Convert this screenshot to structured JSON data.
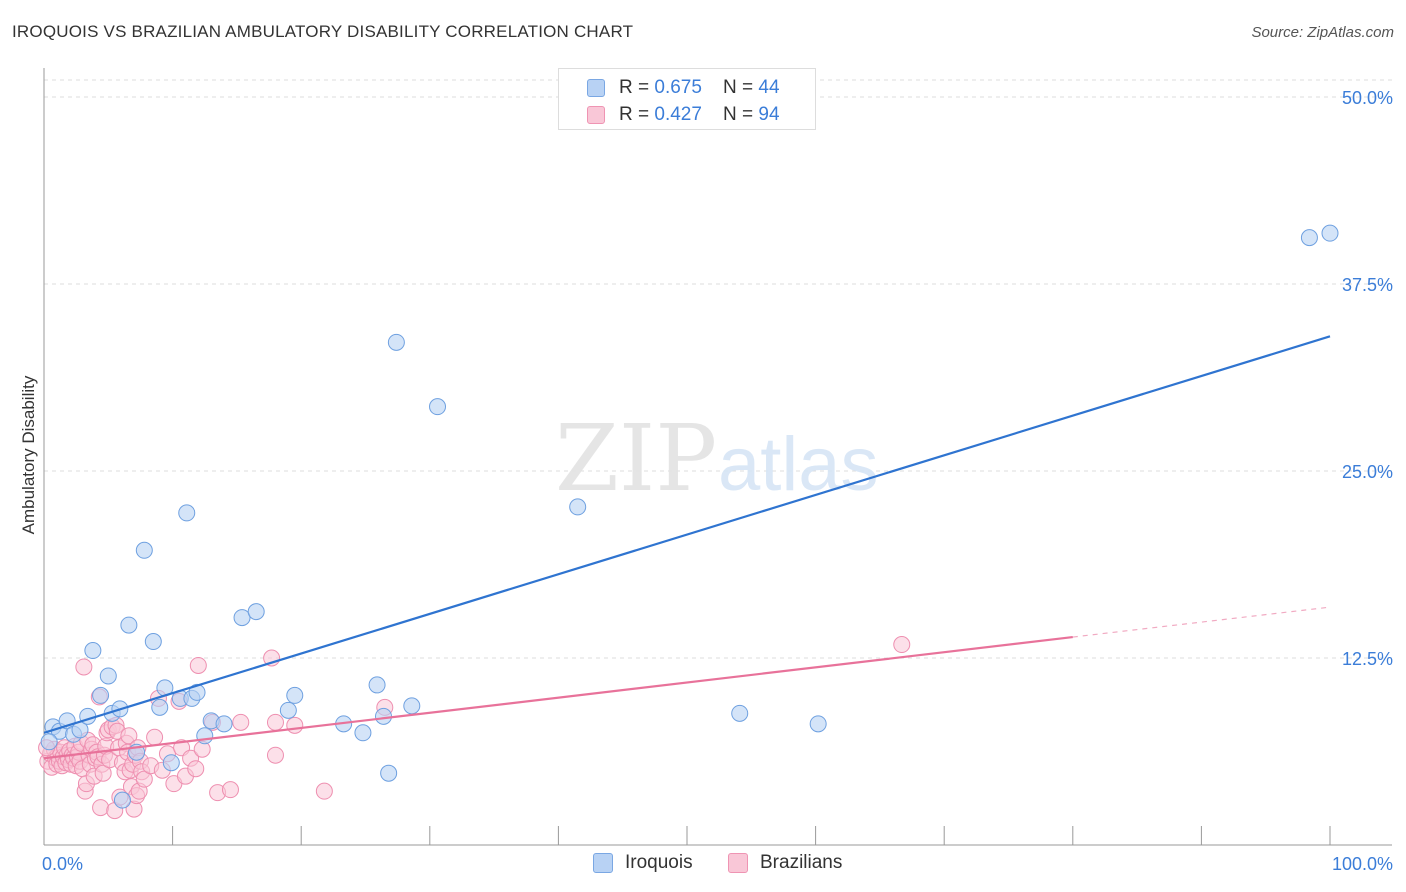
{
  "header": {
    "title": "IROQUOIS VS BRAZILIAN AMBULATORY DISABILITY CORRELATION CHART",
    "source": "Source: ZipAtlas.com"
  },
  "legend": {
    "rows": [
      {
        "r_label": "R = ",
        "r_value": "0.675",
        "n_label": "N = ",
        "n_value": "44"
      },
      {
        "r_label": "R = ",
        "r_value": "0.427",
        "n_label": "N = ",
        "n_value": "94"
      }
    ],
    "series_names": [
      "Iroquois",
      "Brazilians"
    ]
  },
  "watermark": {
    "zip": "ZIP",
    "atlas": "atlas"
  },
  "colors": {
    "blue_fill": "#b8d2f4",
    "blue_stroke": "#6ea0e0",
    "blue_line": "#2f74d0",
    "pink_fill": "#f9c7d7",
    "pink_stroke": "#ee8fb0",
    "pink_line": "#e8729a",
    "tick_label": "#3b7dd8",
    "grid": "#dddddd"
  },
  "chart_data": {
    "type": "scatter",
    "title": "IROQUOIS VS BRAZILIAN AMBULATORY DISABILITY CORRELATION CHART",
    "xlabel": "",
    "ylabel": "Ambulatory Disability",
    "xlim": [
      0,
      100
    ],
    "ylim": [
      0,
      50
    ],
    "x_tick_labels": [
      "0.0%",
      "100.0%"
    ],
    "y_ticks": [
      12.5,
      25.0,
      37.5,
      50.0
    ],
    "y_tick_labels": [
      "12.5%",
      "25.0%",
      "37.5%",
      "50.0%"
    ],
    "series": [
      {
        "name": "Iroquois",
        "r": 0.675,
        "n": 44,
        "trend": {
          "x0": 0,
          "y0": 7.5,
          "x1": 100,
          "y1": 34.0
        },
        "points": [
          [
            0.7,
            7.9
          ],
          [
            1.2,
            7.6
          ],
          [
            1.8,
            8.3
          ],
          [
            2.3,
            7.4
          ],
          [
            2.8,
            7.7
          ],
          [
            3.4,
            8.6
          ],
          [
            3.8,
            13.0
          ],
          [
            4.4,
            10.0
          ],
          [
            5.0,
            11.3
          ],
          [
            5.3,
            8.8
          ],
          [
            5.9,
            9.1
          ],
          [
            6.1,
            3.0
          ],
          [
            6.6,
            14.7
          ],
          [
            7.2,
            6.2
          ],
          [
            7.8,
            19.7
          ],
          [
            8.5,
            13.6
          ],
          [
            9.0,
            9.2
          ],
          [
            9.4,
            10.5
          ],
          [
            9.9,
            5.5
          ],
          [
            10.6,
            9.8
          ],
          [
            11.1,
            22.2
          ],
          [
            11.5,
            9.8
          ],
          [
            11.9,
            10.2
          ],
          [
            12.5,
            7.3
          ],
          [
            13.0,
            8.3
          ],
          [
            14.0,
            8.1
          ],
          [
            15.4,
            15.2
          ],
          [
            16.5,
            15.6
          ],
          [
            19.0,
            9.0
          ],
          [
            19.5,
            10.0
          ],
          [
            23.3,
            8.1
          ],
          [
            24.8,
            7.5
          ],
          [
            25.9,
            10.7
          ],
          [
            26.4,
            8.6
          ],
          [
            26.8,
            4.8
          ],
          [
            27.4,
            33.6
          ],
          [
            28.6,
            9.3
          ],
          [
            30.6,
            29.3
          ],
          [
            41.5,
            22.6
          ],
          [
            54.1,
            8.8
          ],
          [
            60.2,
            8.1
          ],
          [
            98.4,
            40.6
          ],
          [
            100.0,
            40.9
          ],
          [
            0.4,
            6.9
          ]
        ]
      },
      {
        "name": "Brazilians",
        "r": 0.427,
        "n": 94,
        "trend": {
          "x0": 0,
          "y0": 5.8,
          "x1": 80,
          "y1": 13.9
        },
        "trend_dashed": {
          "x0": 80,
          "y0": 13.9,
          "x1": 100,
          "y1": 15.9
        },
        "points": [
          [
            0.3,
            5.6
          ],
          [
            0.5,
            6.1
          ],
          [
            0.6,
            5.2
          ],
          [
            0.8,
            6.4
          ],
          [
            0.9,
            5.8
          ],
          [
            1.0,
            5.4
          ],
          [
            1.1,
            6.0
          ],
          [
            1.2,
            5.6
          ],
          [
            1.3,
            6.2
          ],
          [
            1.4,
            5.3
          ],
          [
            1.5,
            5.9
          ],
          [
            1.6,
            6.5
          ],
          [
            1.7,
            5.5
          ],
          [
            1.8,
            6.0
          ],
          [
            1.9,
            5.7
          ],
          [
            2.0,
            6.3
          ],
          [
            2.1,
            5.4
          ],
          [
            2.2,
            6.0
          ],
          [
            2.3,
            5.8
          ],
          [
            2.4,
            6.6
          ],
          [
            2.5,
            5.3
          ],
          [
            2.6,
            5.9
          ],
          [
            2.7,
            6.2
          ],
          [
            2.8,
            5.6
          ],
          [
            2.9,
            6.8
          ],
          [
            3.0,
            5.1
          ],
          [
            3.1,
            11.9
          ],
          [
            3.2,
            3.6
          ],
          [
            3.3,
            4.1
          ],
          [
            3.4,
            7.0
          ],
          [
            3.5,
            6.0
          ],
          [
            3.6,
            5.4
          ],
          [
            3.7,
            6.4
          ],
          [
            3.8,
            6.7
          ],
          [
            3.9,
            4.6
          ],
          [
            4.0,
            5.8
          ],
          [
            4.1,
            6.2
          ],
          [
            4.2,
            5.9
          ],
          [
            4.3,
            9.9
          ],
          [
            4.4,
            2.5
          ],
          [
            4.5,
            5.4
          ],
          [
            4.6,
            4.8
          ],
          [
            4.7,
            6.0
          ],
          [
            4.8,
            6.6
          ],
          [
            4.9,
            7.5
          ],
          [
            5.0,
            7.7
          ],
          [
            5.1,
            5.7
          ],
          [
            5.3,
            7.9
          ],
          [
            5.5,
            2.3
          ],
          [
            5.6,
            8.0
          ],
          [
            5.7,
            7.6
          ],
          [
            5.8,
            6.5
          ],
          [
            5.9,
            3.2
          ],
          [
            6.1,
            5.5
          ],
          [
            6.3,
            4.9
          ],
          [
            6.4,
            6.8
          ],
          [
            6.5,
            6.2
          ],
          [
            6.6,
            7.3
          ],
          [
            6.7,
            5.0
          ],
          [
            6.8,
            3.9
          ],
          [
            6.9,
            5.4
          ],
          [
            7.0,
            2.4
          ],
          [
            7.1,
            6.0
          ],
          [
            7.2,
            3.3
          ],
          [
            7.3,
            6.5
          ],
          [
            7.4,
            3.6
          ],
          [
            7.5,
            5.6
          ],
          [
            7.6,
            4.9
          ],
          [
            7.8,
            4.4
          ],
          [
            8.3,
            5.3
          ],
          [
            8.6,
            7.2
          ],
          [
            8.9,
            9.8
          ],
          [
            9.2,
            5.0
          ],
          [
            9.6,
            6.1
          ],
          [
            10.1,
            4.1
          ],
          [
            10.5,
            9.6
          ],
          [
            10.7,
            6.5
          ],
          [
            11.0,
            4.6
          ],
          [
            11.4,
            5.8
          ],
          [
            11.8,
            5.1
          ],
          [
            12.0,
            12.0
          ],
          [
            12.3,
            6.4
          ],
          [
            13.1,
            8.2
          ],
          [
            13.5,
            3.5
          ],
          [
            14.5,
            3.7
          ],
          [
            15.3,
            8.2
          ],
          [
            17.7,
            12.5
          ],
          [
            18.0,
            6.0
          ],
          [
            18.0,
            8.2
          ],
          [
            19.5,
            8.0
          ],
          [
            21.8,
            3.6
          ],
          [
            26.5,
            9.2
          ],
          [
            66.7,
            13.4
          ],
          [
            0.2,
            6.5
          ]
        ]
      }
    ]
  }
}
